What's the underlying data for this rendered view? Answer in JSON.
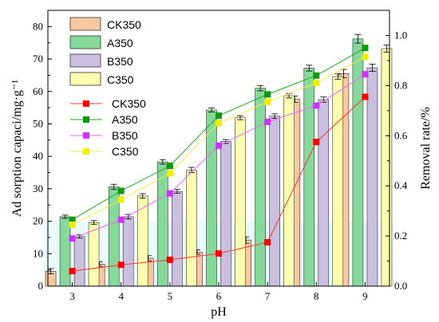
{
  "chart_data": {
    "type": "bar",
    "categories": [
      "3",
      "4",
      "5",
      "6",
      "7",
      "8",
      "9"
    ],
    "xlabel": "pH",
    "ylabel": "Ad sorption capaci/mg·g⁻¹",
    "y2label": "Removal rate/%",
    "ylim": [
      0,
      85
    ],
    "y2lim": [
      0,
      1.1
    ],
    "yticks": [
      0,
      10,
      20,
      30,
      40,
      50,
      60,
      70,
      80
    ],
    "y2ticks": [
      0.0,
      0.2,
      0.4,
      0.6,
      0.8,
      1.0
    ],
    "y2tick_labels": [
      "0.0",
      "0.2",
      "0.4",
      "0.6",
      "0.8",
      "1.0"
    ],
    "bar_series": [
      {
        "name": "CK350",
        "color": "#f8c9a0",
        "values": [
          4.6,
          6.8,
          8.6,
          10.5,
          14.2,
          57.6,
          65.5
        ],
        "errors": [
          0.8,
          0.7,
          0.8,
          0.7,
          1.0,
          1.0,
          1.3
        ]
      },
      {
        "name": "A350",
        "color": "#86d99a",
        "values": [
          21.4,
          30.6,
          38.3,
          54.3,
          61.0,
          67.2,
          76.2
        ],
        "errors": [
          0.5,
          0.8,
          0.7,
          0.6,
          0.8,
          0.9,
          1.3
        ]
      },
      {
        "name": "B350",
        "color": "#cbbfe0",
        "values": [
          15.3,
          21.4,
          29.2,
          44.6,
          52.4,
          57.5,
          67.3
        ],
        "errors": [
          0.5,
          0.7,
          0.6,
          0.6,
          0.7,
          0.8,
          1.1
        ]
      },
      {
        "name": "C350",
        "color": "#fdfdb0",
        "values": [
          19.6,
          27.8,
          35.8,
          51.9,
          58.7,
          64.6,
          73.2
        ],
        "errors": [
          0.6,
          0.7,
          0.8,
          0.6,
          0.7,
          0.8,
          1.1
        ]
      }
    ],
    "line_series": [
      {
        "name": "CK350",
        "color": "#ff3030",
        "marker_color": "#ff0000",
        "values": [
          0.06,
          0.085,
          0.105,
          0.13,
          0.175,
          0.575,
          0.755
        ]
      },
      {
        "name": "A350",
        "color": "#22aa22",
        "marker_color": "#0a9a0a",
        "values": [
          0.265,
          0.38,
          0.48,
          0.68,
          0.765,
          0.84,
          0.95
        ]
      },
      {
        "name": "B350",
        "color": "#ee66ee",
        "marker_color": "#cc33ff",
        "values": [
          0.19,
          0.265,
          0.37,
          0.56,
          0.655,
          0.72,
          0.845
        ]
      },
      {
        "name": "C350",
        "color": "#eeee44",
        "marker_color": "#eeee00",
        "values": [
          0.245,
          0.345,
          0.45,
          0.65,
          0.735,
          0.81,
          0.915
        ]
      }
    ]
  }
}
